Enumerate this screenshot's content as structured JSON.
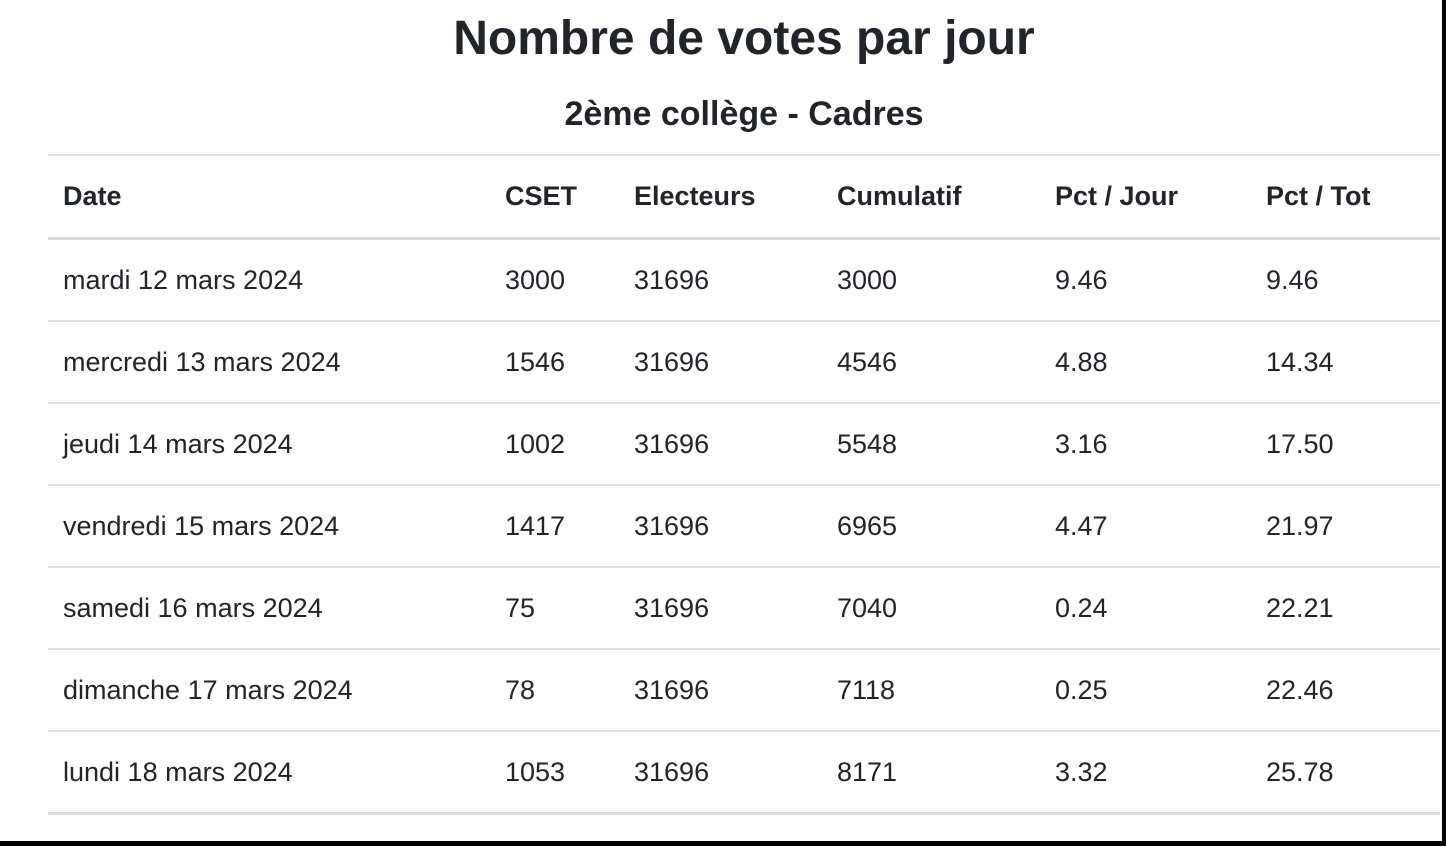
{
  "header": {
    "title": "Nombre de votes par jour",
    "subtitle": "2ème collège - Cadres"
  },
  "table": {
    "columns": [
      "Date",
      "CSET",
      "Electeurs",
      "Cumulatif",
      "Pct / Jour",
      "Pct / Tot"
    ],
    "rows": [
      {
        "date": "mardi 12 mars 2024",
        "cset": "3000",
        "electeurs": "31696",
        "cumulatif": "3000",
        "pct_jour": "9.46",
        "pct_tot": "9.46"
      },
      {
        "date": "mercredi 13 mars 2024",
        "cset": "1546",
        "electeurs": "31696",
        "cumulatif": "4546",
        "pct_jour": "4.88",
        "pct_tot": "14.34"
      },
      {
        "date": "jeudi 14 mars 2024",
        "cset": "1002",
        "electeurs": "31696",
        "cumulatif": "5548",
        "pct_jour": "3.16",
        "pct_tot": "17.50"
      },
      {
        "date": "vendredi 15 mars 2024",
        "cset": "1417",
        "electeurs": "31696",
        "cumulatif": "6965",
        "pct_jour": "4.47",
        "pct_tot": "21.97"
      },
      {
        "date": "samedi 16 mars 2024",
        "cset": "75",
        "electeurs": "31696",
        "cumulatif": "7040",
        "pct_jour": "0.24",
        "pct_tot": "22.21"
      },
      {
        "date": "dimanche 17 mars 2024",
        "cset": "78",
        "electeurs": "31696",
        "cumulatif": "7118",
        "pct_jour": "0.25",
        "pct_tot": "22.46"
      },
      {
        "date": "lundi 18 mars 2024",
        "cset": "1053",
        "electeurs": "31696",
        "cumulatif": "8171",
        "pct_jour": "3.32",
        "pct_tot": "25.78"
      }
    ]
  },
  "colors": {
    "text": "#212529",
    "row_border": "#dee2e6",
    "header_border": "#d8dce0",
    "frame": "#000000",
    "background": "#ffffff"
  }
}
